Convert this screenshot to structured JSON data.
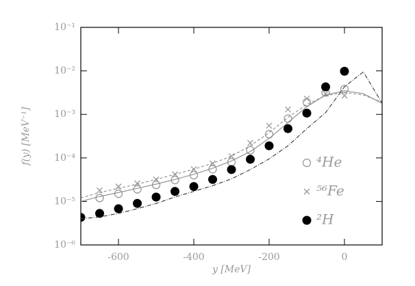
{
  "chart_data": {
    "type": "scatter",
    "xlabel": "y [MeV]",
    "ylabel": "f(y) [MeV⁻¹]",
    "xlim": [
      -700,
      100
    ],
    "xticks": [
      -600,
      -400,
      -200,
      0
    ],
    "ylim": [
      1e-06,
      0.1
    ],
    "ylog": true,
    "yticks": [
      {
        "value": 1e-06,
        "label": "10⁻⁶"
      },
      {
        "value": 1e-05,
        "label": "10⁻⁵"
      },
      {
        "value": 0.0001,
        "label": "10⁻⁴"
      },
      {
        "value": 0.001,
        "label": "10⁻³"
      },
      {
        "value": 0.01,
        "label": "10⁻²"
      },
      {
        "value": 0.1,
        "label": "10⁻¹"
      }
    ],
    "legend": "lower right",
    "series": [
      {
        "name": "⁴He",
        "color": "#999999",
        "marker": "circle-open",
        "x": [
          -650,
          -600,
          -550,
          -500,
          -450,
          -400,
          -350,
          -300,
          -250,
          -200,
          -150,
          -100,
          -50,
          0
        ],
        "values": [
          1.2e-05,
          1.5e-05,
          1.9e-05,
          2.4e-05,
          3.1e-05,
          4e-05,
          5.5e-05,
          8e-05,
          0.00015,
          0.00035,
          0.0008,
          0.0019,
          0.0032,
          0.0038
        ]
      },
      {
        "name": "⁵⁶Fe",
        "color": "#999999",
        "marker": "x",
        "x": [
          -650,
          -600,
          -550,
          -500,
          -450,
          -400,
          -350,
          -300,
          -250,
          -200,
          -150,
          -100,
          -50,
          0
        ],
        "values": [
          1.8e-05,
          2.2e-05,
          2.6e-05,
          3.2e-05,
          4.2e-05,
          5.5e-05,
          7.5e-05,
          0.00011,
          0.00022,
          0.00055,
          0.0013,
          0.0023,
          0.003,
          0.0027
        ]
      },
      {
        "name": "²H",
        "color": "#000000",
        "marker": "circle-filled",
        "x": [
          -700,
          -650,
          -600,
          -550,
          -500,
          -450,
          -400,
          -350,
          -300,
          -250,
          -200,
          -150,
          -100,
          -50,
          0
        ],
        "values": [
          4.3e-06,
          5.3e-06,
          6.8e-06,
          9e-06,
          1.26e-05,
          1.7e-05,
          2.2e-05,
          3.2e-05,
          5.4e-05,
          9.3e-05,
          0.00019,
          0.00047,
          0.00107,
          0.0043,
          0.0098
        ]
      },
      {
        "color": "#888888",
        "dash": "none",
        "x": [
          -700,
          -650,
          -600,
          -550,
          -500,
          -450,
          -400,
          -350,
          -300,
          -250,
          -200,
          -150,
          -100,
          -50,
          0,
          50,
          100
        ],
        "values": [
          1e-05,
          1.3e-05,
          1.6e-05,
          2e-05,
          2.5e-05,
          3.2e-05,
          4.2e-05,
          5.8e-05,
          8.5e-05,
          0.00014,
          0.00028,
          0.00065,
          0.0015,
          0.0028,
          0.0035,
          0.003,
          0.0018
        ]
      },
      {
        "color": "#888888",
        "dash": "4 3",
        "x": [
          -700,
          -650,
          -600,
          -550,
          -500,
          -450,
          -400,
          -350,
          -300,
          -250,
          -200,
          -150,
          -100,
          -50,
          0,
          50,
          100
        ],
        "values": [
          1.2e-05,
          1.6e-05,
          2e-05,
          2.5e-05,
          3.2e-05,
          4.2e-05,
          5.5e-05,
          7.5e-05,
          0.00011,
          0.00019,
          0.00038,
          0.00085,
          0.0017,
          0.0027,
          0.0032,
          0.0028,
          0.0019
        ]
      },
      {
        "color": "#333333",
        "dash": "6 2 1 2",
        "x": [
          -700,
          -650,
          -600,
          -550,
          -500,
          -450,
          -400,
          -350,
          -300,
          -250,
          -200,
          -150,
          -100,
          -50,
          0,
          50,
          100
        ],
        "values": [
          4e-06,
          4.4e-06,
          5.3e-06,
          6.8e-06,
          9e-06,
          1.26e-05,
          1.7e-05,
          2.3e-05,
          3.3e-05,
          5.4e-05,
          9.5e-05,
          0.00019,
          0.00047,
          0.0011,
          0.0043,
          0.0095,
          0.0018
        ]
      }
    ]
  }
}
